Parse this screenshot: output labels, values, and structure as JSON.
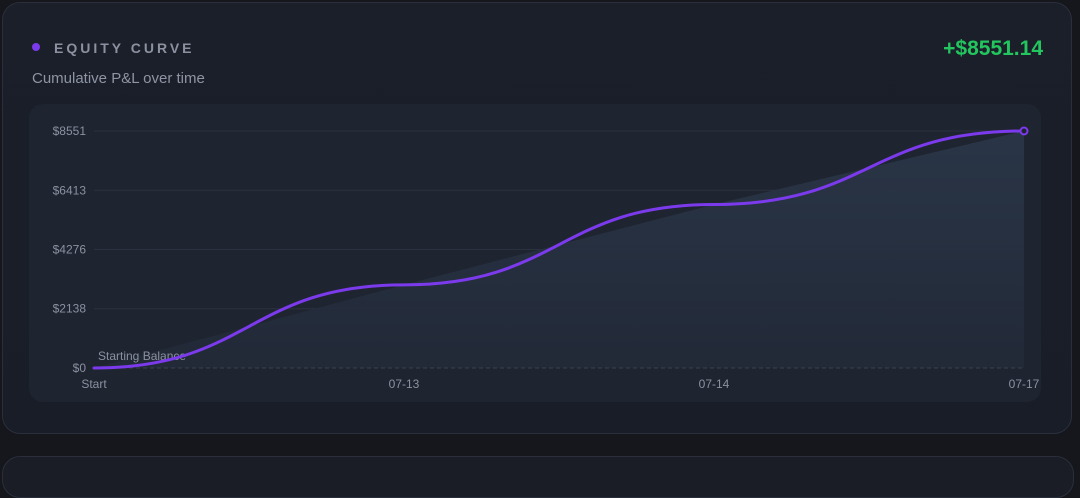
{
  "header": {
    "title": "EQUITY CURVE",
    "subtitle": "Cumulative P&L over time",
    "total": "+$8551.14"
  },
  "colors": {
    "accent": "#7c3aed",
    "positive": "#22c55e",
    "grid": "#2b3140",
    "area": "#253040"
  },
  "chart_data": {
    "type": "line",
    "title": "EQUITY CURVE",
    "subtitle": "Cumulative P&L over time",
    "x": [
      "Start",
      "07-13",
      "07-14",
      "07-17"
    ],
    "series": [
      {
        "values": [
          0,
          3000,
          5900,
          8551.14
        ]
      }
    ],
    "ylim": [
      0,
      8551
    ],
    "yticks": [
      "$0",
      "$2138",
      "$4276",
      "$6413",
      "$8551"
    ],
    "ytick_values": [
      0,
      2138,
      4276,
      6413,
      8551
    ],
    "baseline_label": "Starting Balance",
    "grid": true,
    "legend": "none"
  }
}
